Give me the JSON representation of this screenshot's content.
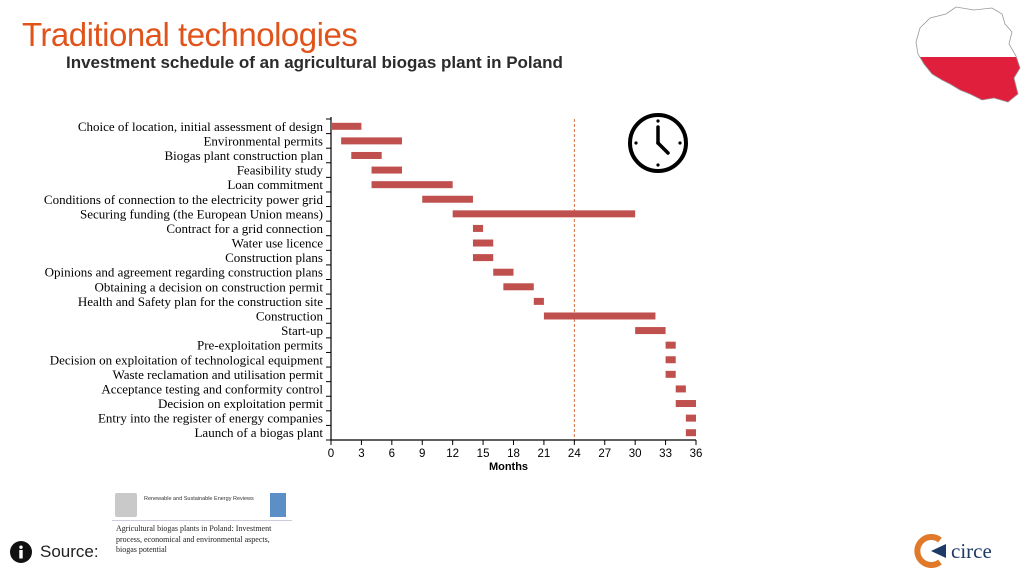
{
  "header": {
    "title": "Traditional technologies",
    "subtitle": "Investment schedule of an agricultural biogas plant in Poland"
  },
  "colors": {
    "title": "#e0541c",
    "bar": "#c0504d",
    "reference_line": "#d0602c",
    "axis": "#000000",
    "flag_red": "#e01f3d"
  },
  "icons": {
    "map": "poland-map-icon",
    "clock": "clock-icon",
    "info": "info-icon",
    "logo": "circe-logo-icon"
  },
  "source": {
    "label": "Source:",
    "journal": "Renewable and Sustainable Energy Reviews",
    "paper_title": "Agricultural biogas plants in Poland: Investment process, economical and environmental aspects, biogas potential"
  },
  "logo": {
    "text": "circe"
  },
  "chart_data": {
    "type": "gantt",
    "title": "",
    "xlabel": "Months",
    "ylabel": "",
    "xlim": [
      0,
      36
    ],
    "xticks": [
      0,
      3,
      6,
      9,
      12,
      15,
      18,
      21,
      24,
      27,
      30,
      33,
      36
    ],
    "reference_line": {
      "x": 24,
      "style": "dashed"
    },
    "tasks": [
      {
        "label": "Choice of location, initial assessment of design",
        "start": 0,
        "end": 3
      },
      {
        "label": "Environmental permits",
        "start": 1,
        "end": 7
      },
      {
        "label": "Biogas plant construction plan",
        "start": 2,
        "end": 5
      },
      {
        "label": "Feasibility study",
        "start": 4,
        "end": 7
      },
      {
        "label": "Loan commitment",
        "start": 4,
        "end": 12
      },
      {
        "label": "Conditions of connection to the electricity power grid",
        "start": 9,
        "end": 14
      },
      {
        "label": "Securing funding (the European Union means)",
        "start": 12,
        "end": 30
      },
      {
        "label": "Contract for a grid connection",
        "start": 14,
        "end": 15
      },
      {
        "label": "Water use licence",
        "start": 14,
        "end": 16
      },
      {
        "label": "Construction plans",
        "start": 14,
        "end": 16
      },
      {
        "label": "Opinions and agreement regarding construction plans",
        "start": 16,
        "end": 18
      },
      {
        "label": "Obtaining a decision on construction permit",
        "start": 17,
        "end": 20
      },
      {
        "label": "Health and Safety plan for the construction site",
        "start": 20,
        "end": 21
      },
      {
        "label": "Construction",
        "start": 21,
        "end": 32
      },
      {
        "label": "Start-up",
        "start": 30,
        "end": 33
      },
      {
        "label": "Pre-exploitation permits",
        "start": 33,
        "end": 34
      },
      {
        "label": "Decision on exploitation of technological equipment",
        "start": 33,
        "end": 34
      },
      {
        "label": "Waste reclamation and utilisation permit",
        "start": 33,
        "end": 34
      },
      {
        "label": "Acceptance testing and conformity control",
        "start": 34,
        "end": 35
      },
      {
        "label": "Decision on exploitation permit",
        "start": 34,
        "end": 36
      },
      {
        "label": "Entry into the register of energy companies",
        "start": 35,
        "end": 36
      },
      {
        "label": "Launch of a biogas plant",
        "start": 35,
        "end": 36
      }
    ]
  }
}
